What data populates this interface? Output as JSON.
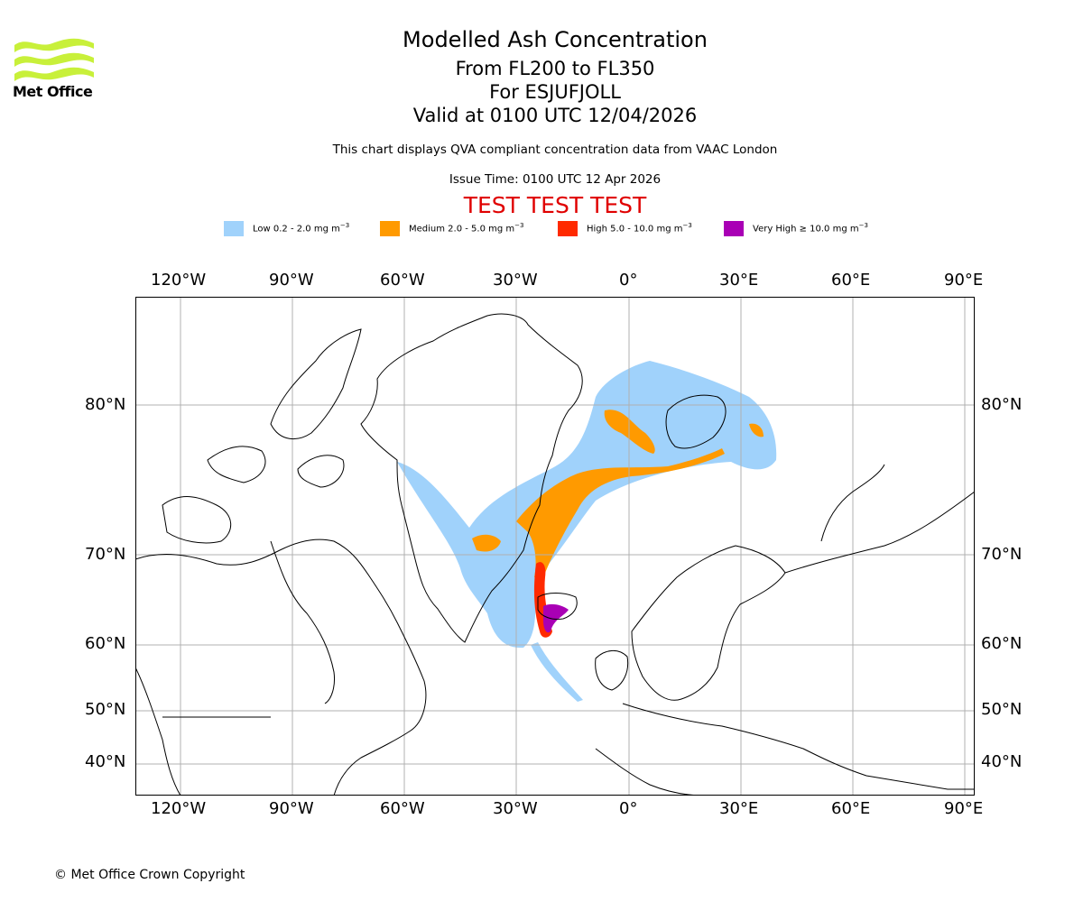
{
  "logo": {
    "text": "Met Office",
    "icon": "met-office-wave-logo",
    "color": "#c8f03a"
  },
  "header": {
    "title": "Modelled Ash Concentration",
    "levels": "From FL200 to FL350",
    "volcano": "For ESJUFJOLL",
    "valid": "Valid at 0100 UTC 12/04/2026",
    "note": "This chart displays QVA compliant concentration data from VAAC London",
    "issue": "Issue Time: 0100 UTC 12 Apr 2026",
    "test_banner": "TEST TEST TEST",
    "test_color": "#e00000"
  },
  "legend": [
    {
      "label": "Low 0.2 - 2.0 mg m",
      "color": "#a0d2fb"
    },
    {
      "label": "Medium 2.0 - 5.0 mg m",
      "color": "#ff9a00"
    },
    {
      "label": "High 5.0 - 10.0 mg m",
      "color": "#ff2a00"
    },
    {
      "label": "Very High  ≥  10.0 mg m",
      "color": "#a900b5"
    }
  ],
  "legend_unit_exp": "−3",
  "axes": {
    "lon_ticks": [
      "120°W",
      "90°W",
      "60°W",
      "30°W",
      "0°",
      "30°E",
      "60°E",
      "90°E"
    ],
    "lat_ticks": [
      "80°N",
      "70°N",
      "60°N",
      "50°N",
      "40°N"
    ]
  },
  "footer": {
    "copyright": "© Met Office Crown Copyright"
  }
}
